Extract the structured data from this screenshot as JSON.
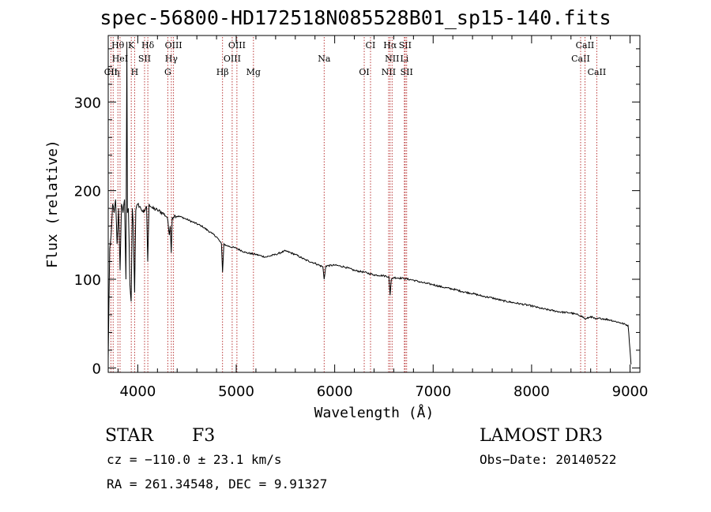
{
  "title": "spec-56800-HD172518N085528B01_sp15-140.fits",
  "chart_data": {
    "type": "line",
    "xlabel": "Wavelength (Å)",
    "ylabel": "Flux (relative)",
    "xlim": [
      3700,
      9100
    ],
    "ylim": [
      -5,
      375
    ],
    "xticks": [
      4000,
      5000,
      6000,
      7000,
      8000,
      9000
    ],
    "yticks": [
      0,
      100,
      200,
      300
    ],
    "series": [
      {
        "name": "spectrum",
        "x": [
          3700,
          3715,
          3730,
          3745,
          3760,
          3775,
          3790,
          3805,
          3820,
          3835,
          3850,
          3865,
          3880,
          3889,
          3895,
          3905,
          3920,
          3933,
          3945,
          3955,
          3968,
          3980,
          4000,
          4030,
          4060,
          4090,
          4101,
          4115,
          4150,
          4200,
          4250,
          4300,
          4320,
          4330,
          4340,
          4350,
          4380,
          4450,
          4550,
          4650,
          4750,
          4800,
          4850,
          4861,
          4875,
          4900,
          5000,
          5100,
          5200,
          5300,
          5400,
          5500,
          5600,
          5700,
          5800,
          5880,
          5893,
          5910,
          6000,
          6100,
          6200,
          6300,
          6400,
          6500,
          6550,
          6563,
          6575,
          6600,
          6700,
          6800,
          6900,
          7000,
          7100,
          7200,
          7300,
          7400,
          7500,
          7600,
          7700,
          7800,
          7900,
          8000,
          8100,
          8200,
          8300,
          8400,
          8500,
          8550,
          8600,
          8650,
          8700,
          8800,
          8900,
          8980,
          9000,
          9010
        ],
        "y": [
          10,
          135,
          150,
          185,
          175,
          190,
          140,
          180,
          110,
          185,
          175,
          190,
          100,
          368,
          175,
          180,
          95,
          75,
          180,
          160,
          85,
          178,
          185,
          180,
          175,
          182,
          120,
          185,
          180,
          178,
          175,
          170,
          150,
          160,
          130,
          170,
          172,
          170,
          165,
          160,
          152,
          148,
          140,
          108,
          140,
          138,
          135,
          130,
          128,
          125,
          128,
          132,
          128,
          122,
          118,
          114,
          100,
          115,
          116,
          114,
          110,
          108,
          105,
          104,
          103,
          82,
          100,
          102,
          101,
          99,
          96,
          94,
          91,
          89,
          86,
          84,
          81,
          79,
          76,
          74,
          72,
          70,
          67,
          65,
          63,
          62,
          59,
          55,
          58,
          55,
          56,
          54,
          51,
          48,
          20,
          4
        ]
      }
    ],
    "lines": [
      {
        "name": "C II",
        "label": "CII",
        "x": 3727,
        "row": 2
      },
      {
        "name": "H eta",
        "label": "Hη",
        "x": 3750,
        "row": 2
      },
      {
        "name": "H theta",
        "label": "Hθ",
        "x": 3798,
        "row": 0
      },
      {
        "name": "He I",
        "label": "HeI",
        "x": 3820,
        "row": 1
      },
      {
        "name": "K",
        "label": "K",
        "x": 3934,
        "row": 0
      },
      {
        "name": "H",
        "label": "H",
        "x": 3968,
        "row": 2
      },
      {
        "name": "S II 4068",
        "label": "SII",
        "x": 4069,
        "row": 1
      },
      {
        "name": "H delta",
        "label": "Hδ",
        "x": 4102,
        "row": 0
      },
      {
        "name": "G",
        "label": "G",
        "x": 4305,
        "row": 2
      },
      {
        "name": "H gamma",
        "label": "Hγ",
        "x": 4341,
        "row": 1
      },
      {
        "name": "O III 4363",
        "label": "OIII",
        "x": 4363,
        "row": 0
      },
      {
        "name": "H beta",
        "label": "Hβ",
        "x": 4861,
        "row": 2
      },
      {
        "name": "O III 4959",
        "label": "OIII",
        "x": 4959,
        "row": 1
      },
      {
        "name": "O III 5007",
        "label": "OIII",
        "x": 5007,
        "row": 0
      },
      {
        "name": "Mg",
        "label": "Mg",
        "x": 5175,
        "row": 2
      },
      {
        "name": "Na",
        "label": "Na",
        "x": 5893,
        "row": 1
      },
      {
        "name": "O I",
        "label": "OI",
        "x": 6300,
        "row": 2
      },
      {
        "name": "C I",
        "label": "CI",
        "x": 6364,
        "row": 0
      },
      {
        "name": "N II 6548",
        "label": "NII",
        "x": 6548,
        "row": 2
      },
      {
        "name": "H alpha",
        "label": "Hα",
        "x": 6563,
        "row": 0
      },
      {
        "name": "N II 6583",
        "label": "NII",
        "x": 6583,
        "row": 1
      },
      {
        "name": "Li",
        "label": "Li",
        "x": 6708,
        "row": 1
      },
      {
        "name": "S II 6716",
        "label": "SII",
        "x": 6716,
        "row": 0
      },
      {
        "name": "S II 6731",
        "label": "SII",
        "x": 6731,
        "row": 2
      },
      {
        "name": "Ca II 8498",
        "label": "CaII",
        "x": 8498,
        "row": 1
      },
      {
        "name": "Ca II 8542",
        "label": "CaII",
        "x": 8542,
        "row": 0
      },
      {
        "name": "Ca II 8662",
        "label": "CaII",
        "x": 8662,
        "row": 2
      }
    ]
  },
  "info": {
    "class": "STAR",
    "subclass": "F3",
    "survey": "LAMOST DR3",
    "cz": "cz = −110.0 ± 23.1 km/s",
    "obsdate": "Obs−Date: 20140522",
    "coords": "RA = 261.34548, DEC =    9.91327"
  }
}
